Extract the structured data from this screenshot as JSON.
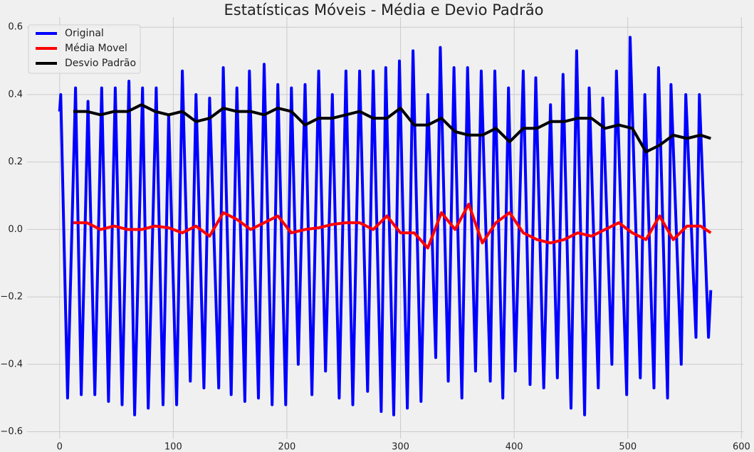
{
  "chart_data": {
    "type": "line",
    "title": "Estatísticas Móveis - Média e Devio Padrão",
    "xlim": [
      -28.65,
      601.65
    ],
    "ylim": [
      -0.62,
      0.63
    ],
    "xticks": [
      0,
      100,
      200,
      300,
      400,
      500,
      600
    ],
    "yticks": [
      {
        "value": -0.6,
        "label": "−0.6"
      },
      {
        "value": -0.4,
        "label": "−0.4"
      },
      {
        "value": -0.2,
        "label": "−0.2"
      },
      {
        "value": 0,
        "label": "0.0"
      },
      0.2,
      0.4,
      0.6
    ],
    "grid": true,
    "legend": "upper-left",
    "series": [
      {
        "name": "Original",
        "color": "#0000ff",
        "x": [
          0,
          1,
          7,
          14,
          19,
          25,
          31,
          37,
          43,
          49,
          55,
          61,
          66,
          73,
          78,
          85,
          91,
          96,
          103,
          108,
          115,
          120,
          127,
          132,
          140,
          144,
          151,
          156,
          163,
          167,
          175,
          180,
          187,
          192,
          199,
          204,
          210,
          216,
          222,
          228,
          234,
          240,
          246,
          252,
          258,
          264,
          271,
          276,
          283,
          287,
          294,
          299,
          306,
          311,
          318,
          324,
          331,
          335,
          342,
          347,
          354,
          359,
          366,
          371,
          379,
          383,
          390,
          395,
          401,
          408,
          414,
          419,
          426,
          432,
          438,
          443,
          450,
          455,
          462,
          466,
          474,
          478,
          486,
          490,
          499,
          502,
          511,
          515,
          523,
          527,
          535,
          538,
          547,
          551,
          560,
          563,
          571,
          573
        ],
        "values": [
          0.35,
          0.4,
          -0.5,
          0.42,
          -0.49,
          0.38,
          -0.49,
          0.42,
          -0.51,
          0.42,
          -0.52,
          0.44,
          -0.55,
          0.42,
          -0.53,
          0.42,
          -0.52,
          0.34,
          -0.52,
          0.47,
          -0.45,
          0.4,
          -0.47,
          0.39,
          -0.47,
          0.48,
          -0.49,
          0.42,
          -0.51,
          0.47,
          -0.5,
          0.49,
          -0.52,
          0.43,
          -0.52,
          0.42,
          -0.4,
          0.43,
          -0.49,
          0.47,
          -0.42,
          0.4,
          -0.5,
          0.47,
          -0.52,
          0.47,
          -0.48,
          0.47,
          -0.54,
          0.48,
          -0.55,
          0.5,
          -0.53,
          0.53,
          -0.51,
          0.4,
          -0.38,
          0.54,
          -0.45,
          0.48,
          -0.5,
          0.48,
          -0.42,
          0.47,
          -0.45,
          0.47,
          -0.5,
          0.42,
          -0.42,
          0.47,
          -0.46,
          0.45,
          -0.47,
          0.37,
          -0.44,
          0.46,
          -0.53,
          0.53,
          -0.55,
          0.42,
          -0.47,
          0.39,
          -0.4,
          0.47,
          -0.49,
          0.57,
          -0.44,
          0.4,
          -0.47,
          0.48,
          -0.5,
          0.43,
          -0.4,
          0.4,
          -0.32,
          0.4,
          -0.32,
          -0.18
        ]
      },
      {
        "name": "Média Movel",
        "color": "#ff0000",
        "x": [
          12,
          24,
          36,
          48,
          60,
          72,
          84,
          96,
          108,
          120,
          132,
          144,
          156,
          168,
          180,
          192,
          204,
          216,
          228,
          240,
          252,
          264,
          276,
          288,
          300,
          312,
          324,
          336,
          348,
          360,
          372,
          384,
          396,
          408,
          420,
          432,
          444,
          456,
          468,
          480,
          492,
          504,
          516,
          528,
          540,
          552,
          564,
          573
        ],
        "values": [
          0.02,
          0.02,
          0.0,
          0.01,
          0.0,
          0.0,
          0.01,
          0.005,
          -0.01,
          0.01,
          -0.02,
          0.05,
          0.03,
          0.0,
          0.02,
          0.04,
          -0.01,
          0.0,
          0.005,
          0.015,
          0.02,
          0.02,
          0.0,
          0.04,
          -0.01,
          -0.01,
          -0.055,
          0.05,
          0.0,
          0.075,
          -0.04,
          0.02,
          0.05,
          -0.01,
          -0.03,
          -0.04,
          -0.03,
          -0.01,
          -0.02,
          0.0,
          0.02,
          -0.01,
          -0.03,
          0.04,
          -0.03,
          0.01,
          0.01,
          -0.01
        ]
      },
      {
        "name": "Desvio Padrão",
        "color": "#000000",
        "x": [
          12,
          24,
          36,
          48,
          60,
          72,
          84,
          96,
          108,
          120,
          132,
          144,
          156,
          168,
          180,
          192,
          204,
          216,
          228,
          240,
          252,
          264,
          276,
          288,
          300,
          312,
          324,
          336,
          348,
          360,
          372,
          384,
          396,
          408,
          420,
          432,
          444,
          456,
          468,
          480,
          492,
          504,
          516,
          528,
          540,
          552,
          564,
          573
        ],
        "values": [
          0.35,
          0.35,
          0.34,
          0.35,
          0.35,
          0.37,
          0.35,
          0.34,
          0.35,
          0.32,
          0.33,
          0.36,
          0.35,
          0.35,
          0.34,
          0.36,
          0.35,
          0.31,
          0.33,
          0.33,
          0.34,
          0.35,
          0.33,
          0.33,
          0.36,
          0.31,
          0.31,
          0.33,
          0.29,
          0.28,
          0.28,
          0.3,
          0.26,
          0.3,
          0.3,
          0.32,
          0.32,
          0.33,
          0.33,
          0.3,
          0.31,
          0.3,
          0.23,
          0.25,
          0.28,
          0.27,
          0.28,
          0.27
        ]
      }
    ]
  }
}
